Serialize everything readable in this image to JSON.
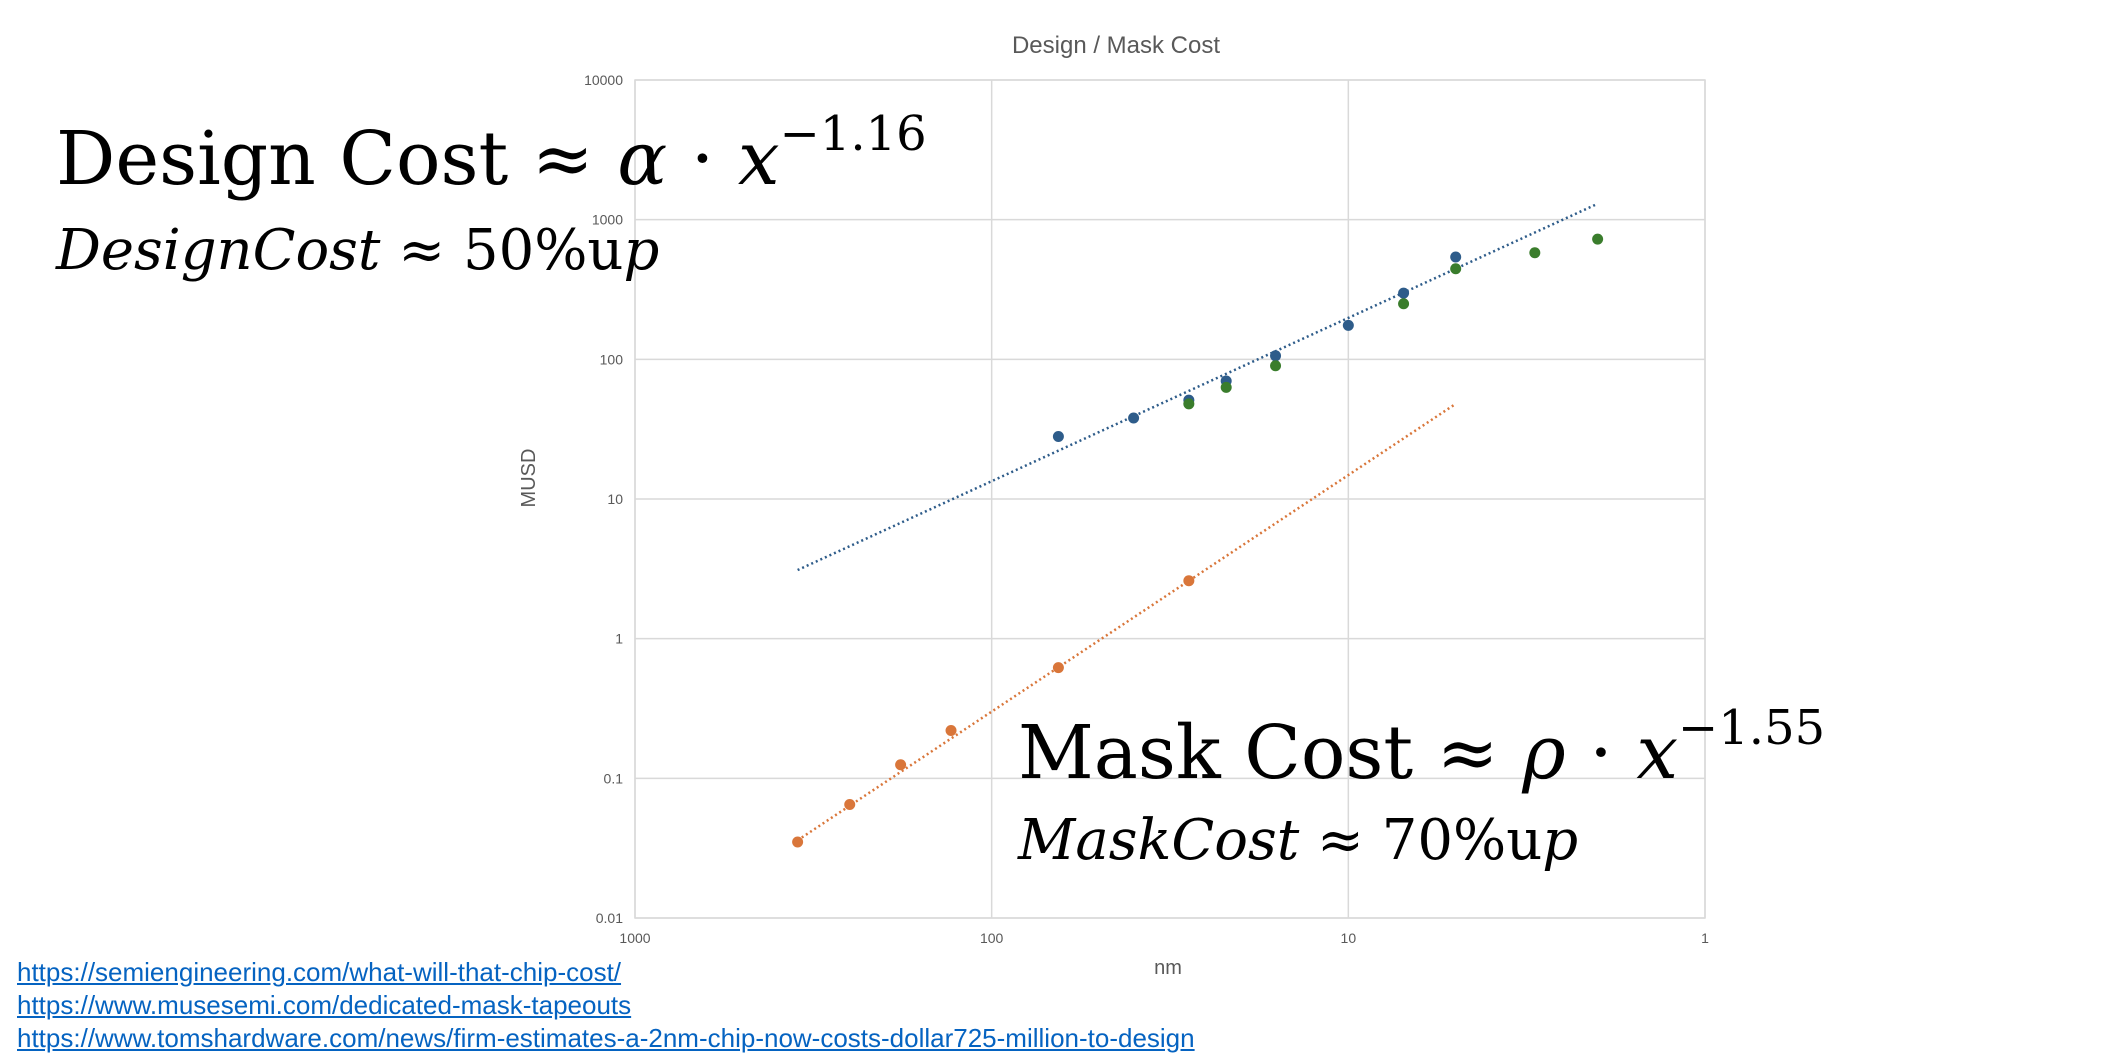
{
  "chart_data": {
    "type": "scatter",
    "title": "Design / Mask Cost",
    "xlabel": "nm",
    "ylabel": "MUSD",
    "x_scale": "log",
    "x_reversed": true,
    "y_scale": "log",
    "xlim": [
      1000,
      1
    ],
    "ylim": [
      0.01,
      10000
    ],
    "x_ticks": [
      "1000",
      "100",
      "10",
      "1"
    ],
    "y_ticks": [
      "0.01",
      "0.1",
      "1",
      "10",
      "100",
      "1000",
      "10000"
    ],
    "grid": true,
    "series": [
      {
        "color": "#2e5c8a",
        "points": [
          {
            "x": 65,
            "y": 28
          },
          {
            "x": 40,
            "y": 38
          },
          {
            "x": 28,
            "y": 51
          },
          {
            "x": 22,
            "y": 70
          },
          {
            "x": 16,
            "y": 106
          },
          {
            "x": 10,
            "y": 175
          },
          {
            "x": 7,
            "y": 298
          },
          {
            "x": 5,
            "y": 540
          }
        ],
        "trendline": {
          "x": [
            350,
            2
          ],
          "y": [
            3.1,
            1300
          ],
          "style": "dotted"
        }
      },
      {
        "color": "#3a7d2c",
        "points": [
          {
            "x": 28,
            "y": 48
          },
          {
            "x": 22,
            "y": 63
          },
          {
            "x": 16,
            "y": 90
          },
          {
            "x": 7,
            "y": 250
          },
          {
            "x": 5,
            "y": 445
          },
          {
            "x": 3,
            "y": 580
          },
          {
            "x": 2,
            "y": 725
          }
        ]
      },
      {
        "color": "#d9763a",
        "points": [
          {
            "x": 350,
            "y": 0.035
          },
          {
            "x": 250,
            "y": 0.065
          },
          {
            "x": 180,
            "y": 0.125
          },
          {
            "x": 130,
            "y": 0.22
          },
          {
            "x": 65,
            "y": 0.62
          },
          {
            "x": 28,
            "y": 2.6
          }
        ],
        "trendline": {
          "x": [
            350,
            5
          ],
          "y": [
            0.036,
            48
          ],
          "style": "dotted"
        }
      }
    ]
  },
  "annotations": {
    "design_eq": {
      "label": "Design Cost",
      "approx": "≈",
      "symbol": "α",
      "dot": "·",
      "var": "x",
      "exponent": "−1.16"
    },
    "design_growth": {
      "label": "DesignCost",
      "approx": "≈",
      "percent": "50%",
      "unit": "u",
      "tail": "p"
    },
    "mask_eq": {
      "label": "Mask Cost",
      "approx": "≈",
      "symbol": "ρ",
      "dot": "·",
      "var": "x",
      "exponent": "−1.55"
    },
    "mask_growth": {
      "label": "MaskCost",
      "approx": "≈",
      "percent": "70%",
      "unit": "u",
      "tail": "p"
    }
  },
  "links": [
    "https://semiengineering.com/what-will-that-chip-cost/",
    "https://www.musesemi.com/dedicated-mask-tapeouts",
    "https://www.tomshardware.com/news/firm-estimates-a-2nm-chip-now-costs-dollar725-million-to-design"
  ]
}
